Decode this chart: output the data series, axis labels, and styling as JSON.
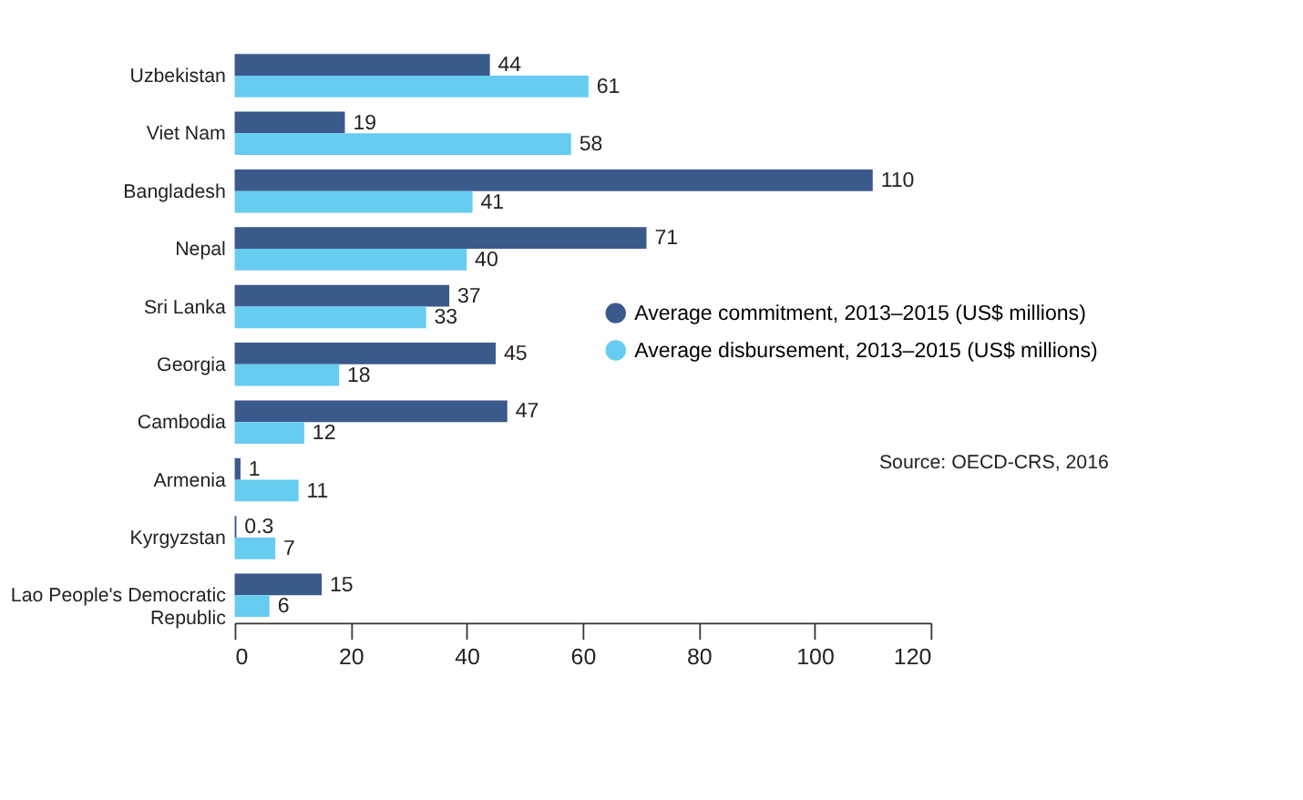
{
  "chart_data": {
    "type": "bar",
    "orientation": "horizontal",
    "categories": [
      "Uzbekistan",
      "Viet Nam",
      "Bangladesh",
      "Nepal",
      "Sri Lanka",
      "Georgia",
      "Cambodia",
      "Armenia",
      "Kyrgyzstan",
      "Lao People's Democratic Republic"
    ],
    "series": [
      {
        "name": "Average commitment, 2013–2015 (US$ millions)",
        "color": "#3a5a8c",
        "values": [
          44,
          19,
          110,
          71,
          37,
          45,
          47,
          1,
          0.3,
          15
        ]
      },
      {
        "name": "Average disbursement, 2013–2015 (US$ millions)",
        "color": "#66ccf0",
        "values": [
          61,
          58,
          41,
          40,
          33,
          18,
          12,
          11,
          7,
          6
        ]
      }
    ],
    "xlim": [
      0,
      120
    ],
    "xticks": [
      0,
      20,
      40,
      60,
      80,
      100,
      120
    ],
    "grid": false,
    "data_labels": true,
    "legend": "right",
    "annotations": [
      "Source: OECD-CRS, 2016"
    ]
  }
}
